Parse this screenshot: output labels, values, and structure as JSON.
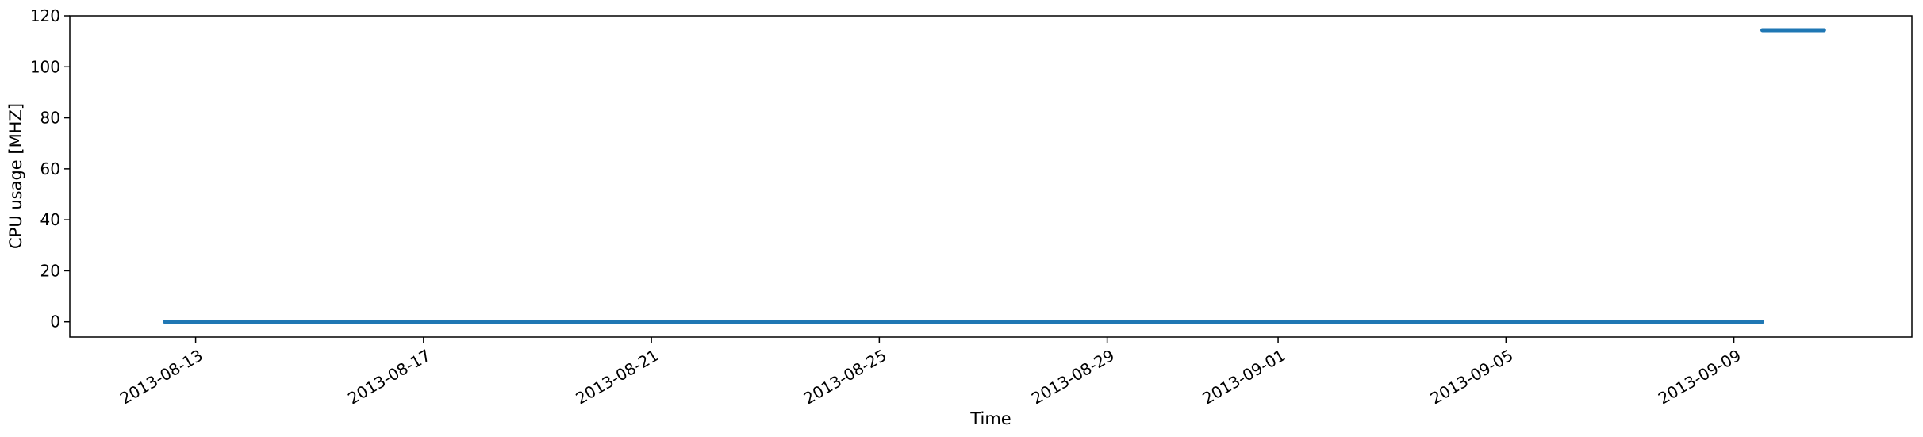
{
  "chart_data": {
    "type": "line",
    "title": "",
    "xlabel": "Time",
    "ylabel": "CPU usage [MHZ]",
    "xlim": [
      "2013-08-10T19:00",
      "2013-09-12T03:00"
    ],
    "ylim": [
      -6,
      120
    ],
    "grid": false,
    "legend": "none",
    "x_ticks": [
      "2013-08-13",
      "2013-08-17",
      "2013-08-21",
      "2013-08-25",
      "2013-08-29",
      "2013-09-01",
      "2013-09-05",
      "2013-09-09"
    ],
    "y_ticks": [
      0,
      20,
      40,
      60,
      80,
      100,
      120
    ],
    "series": [
      {
        "color": "#1f77b4",
        "segments": [
          {
            "x": [
              "2013-08-12T11:00",
              "2013-09-09T12:00"
            ],
            "y": [
              0,
              0
            ]
          },
          {
            "x": [
              "2013-09-09T12:00",
              "2013-09-10T14:00"
            ],
            "y": [
              114.4,
              114.4
            ]
          }
        ]
      }
    ]
  }
}
